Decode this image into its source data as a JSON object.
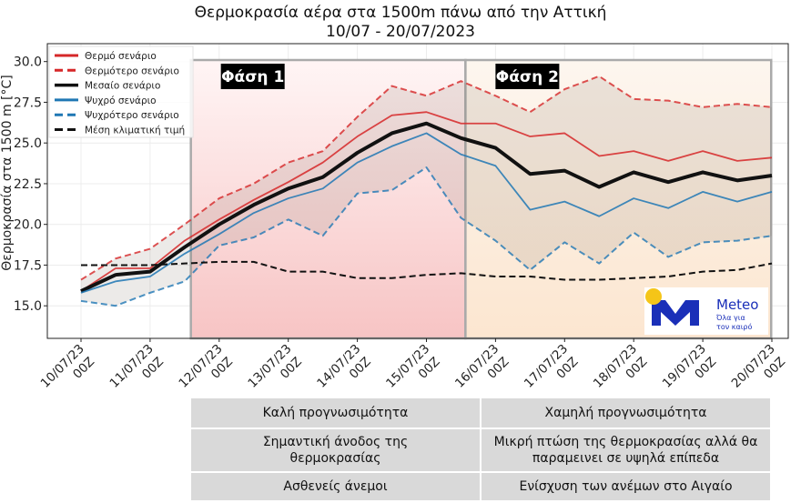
{
  "chart_data": {
    "type": "line",
    "title": "Θερμοκρασία αέρα στα 1500m πάνω από την Αττική",
    "subtitle": "10/07 - 20/07/2023",
    "ylabel": "Θερμοκρασία στα 1500 m [°C]",
    "xlabel": "",
    "ylim": [
      13.0,
      31.1
    ],
    "yticks": [
      "15.0",
      "17.5",
      "20.0",
      "22.5",
      "25.0",
      "27.5",
      "30.0"
    ],
    "xtick_labels": [
      [
        "10/07/23",
        "00Z"
      ],
      [
        "11/07/23",
        "00Z"
      ],
      [
        "12/07/23",
        "00Z"
      ],
      [
        "13/07/23",
        "00Z"
      ],
      [
        "14/07/23",
        "00Z"
      ],
      [
        "15/07/23",
        "00Z"
      ],
      [
        "16/07/23",
        "00Z"
      ],
      [
        "17/07/23",
        "00Z"
      ],
      [
        "18/07/23",
        "00Z"
      ],
      [
        "19/07/23",
        "00Z"
      ],
      [
        "20/07/23",
        "00Z"
      ]
    ],
    "x_step": "12h",
    "grid": true,
    "legend_placement": "top-left",
    "series": [
      {
        "name": "Θερμό σενάριο",
        "color": "#d62728",
        "style": "solid",
        "values": [
          15.9,
          17.3,
          17.3,
          19.0,
          20.3,
          21.5,
          22.6,
          23.8,
          25.4,
          26.7,
          26.9,
          26.2,
          26.2,
          25.4,
          25.6,
          24.2,
          24.5,
          23.9,
          24.5,
          23.9,
          24.1
        ]
      },
      {
        "name": "Θερμότερο σενάριο",
        "color": "#d62728",
        "style": "dashed",
        "values": [
          16.6,
          17.9,
          18.5,
          20.0,
          21.6,
          22.5,
          23.8,
          24.5,
          26.6,
          28.5,
          27.9,
          28.8,
          27.9,
          26.9,
          28.3,
          29.1,
          27.7,
          27.6,
          27.2,
          27.4,
          27.2
        ]
      },
      {
        "name": "Μεσαίο σενάριο",
        "color": "#111111",
        "style": "thick",
        "values": [
          15.9,
          16.9,
          17.1,
          18.6,
          20.0,
          21.2,
          22.2,
          22.9,
          24.4,
          25.6,
          26.2,
          25.3,
          24.7,
          23.1,
          23.3,
          22.3,
          23.2,
          22.6,
          23.2,
          22.7,
          23.0
        ]
      },
      {
        "name": "Ψυχρό σενάριο",
        "color": "#1f77b4",
        "style": "solid",
        "values": [
          15.8,
          16.5,
          16.8,
          18.2,
          19.4,
          20.7,
          21.6,
          22.2,
          23.8,
          24.8,
          25.6,
          24.3,
          23.6,
          20.9,
          21.4,
          20.5,
          21.6,
          21.0,
          22.0,
          21.4,
          22.0
        ]
      },
      {
        "name": "Ψυχρότερο σενάριο",
        "color": "#1f77b4",
        "style": "dashed",
        "values": [
          15.3,
          15.0,
          15.8,
          16.5,
          18.7,
          19.2,
          20.3,
          19.3,
          21.9,
          22.1,
          23.5,
          20.4,
          19.0,
          17.2,
          18.9,
          17.6,
          19.5,
          18.0,
          18.9,
          19.0,
          19.3
        ]
      },
      {
        "name": "Μέση κλιματική τιμή",
        "color": "#111111",
        "style": "dashed",
        "values": [
          17.5,
          17.5,
          17.5,
          17.6,
          17.7,
          17.7,
          17.1,
          17.1,
          16.7,
          16.7,
          16.9,
          17.0,
          16.8,
          16.8,
          16.6,
          16.6,
          16.7,
          16.8,
          17.1,
          17.2,
          17.6
        ]
      }
    ],
    "phases": [
      {
        "label": "Φάση 1",
        "color": "#f7c4c4"
      },
      {
        "label": "Φάση 2",
        "color": "#fce6d0"
      }
    ]
  },
  "logo": {
    "name": "Meteo",
    "tagline1": "Όλα για",
    "tagline2": "τον καιρό",
    "colors": {
      "m": "#1a2fb8",
      "sun": "#f5c518"
    }
  },
  "table": {
    "rows": [
      [
        "Καλή προγνωσιμότητα",
        "Χαμηλή προγνωσιμότητα"
      ],
      [
        "Σημαντική άνοδος της θερμοκρασίας",
        "Μικρή πτώση της θερμοκρασίας αλλά θα παραμεινει σε υψηλά επίπεδα"
      ],
      [
        "Ασθενείς άνεμοι",
        "Ενίσχυση των ανέμων στο Αιγαίο"
      ]
    ]
  }
}
